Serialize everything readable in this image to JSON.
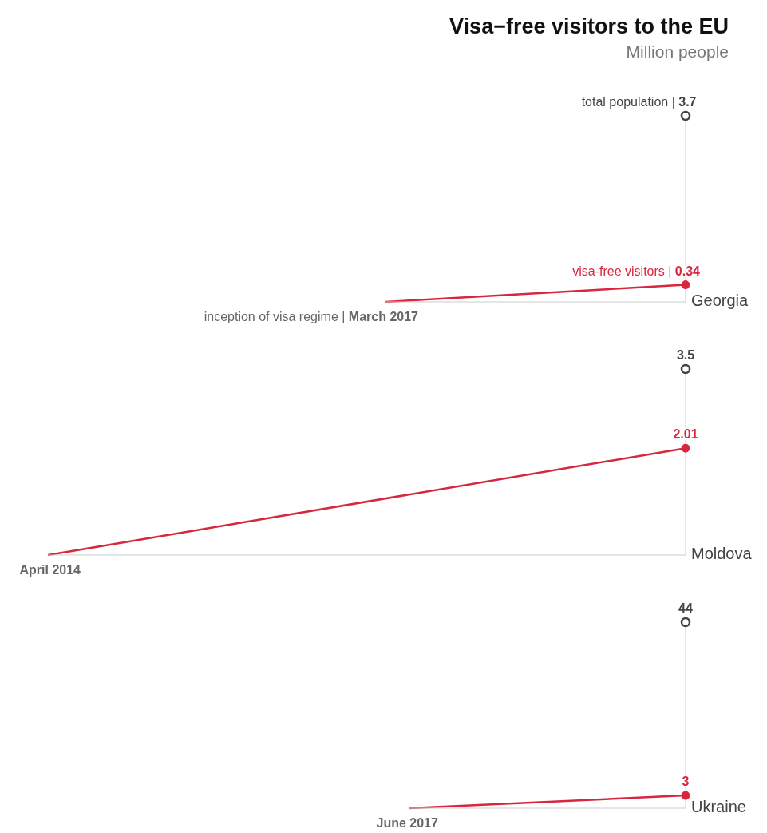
{
  "chart_data": [
    {
      "type": "line",
      "title": "Visa−free visitors to the EU",
      "subtitle": "Million people",
      "xlabel": "Georgia",
      "annotations": [
        "inception of visa regime | March 2017"
      ],
      "categories": [
        null,
        null
      ],
      "ylim": [
        0,
        3.7
      ],
      "marker": "circle",
      "series": [
        {
          "color": "#d7263d",
          "values": [
            0,
            0.34
          ],
          "value_labels": [
            null,
            "visa-free visitors | 0.34"
          ]
        },
        {
          "color": "#444444",
          "values": [
            null,
            3.7
          ],
          "value_labels": [
            null,
            "total population | 3.7"
          ]
        }
      ]
    },
    {
      "type": "line",
      "xlabel": "Moldova",
      "annotations": [
        "April 2014"
      ],
      "categories": [
        null,
        null
      ],
      "ylim": [
        0,
        3.5
      ],
      "marker": "circle",
      "series": [
        {
          "color": "#d7263d",
          "values": [
            0,
            2.01
          ],
          "value_labels": [
            null,
            "2.01"
          ]
        },
        {
          "color": "#444444",
          "values": [
            null,
            3.5
          ],
          "value_labels": [
            null,
            "3.5"
          ]
        }
      ]
    },
    {
      "type": "line",
      "xlabel": "Ukraine",
      "annotations": [
        "June 2017"
      ],
      "categories": [
        null,
        null
      ],
      "ylim": [
        0,
        44
      ],
      "marker": "circle",
      "series": [
        {
          "color": "#d7263d",
          "values": [
            0,
            3
          ],
          "value_labels": [
            null,
            "3"
          ]
        },
        {
          "color": "#444444",
          "values": [
            null,
            44
          ],
          "value_labels": [
            null,
            "44"
          ]
        }
      ]
    }
  ]
}
